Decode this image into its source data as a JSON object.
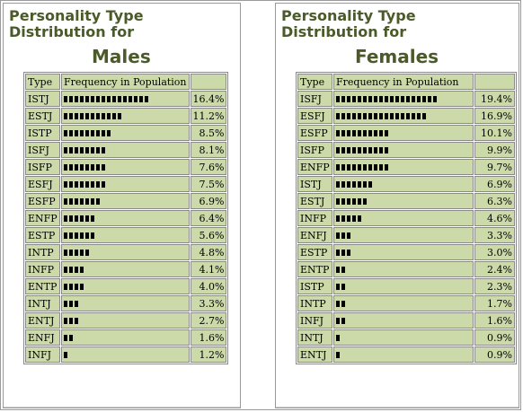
{
  "colors": {
    "heading": "#4a5a28",
    "cell": "#ccd9a8",
    "border": "#8a8a8a",
    "bar": "#000000"
  },
  "males": {
    "title": "Personality Type Distribution for",
    "subtitle": "Males",
    "columns": {
      "type": "Type",
      "frequency": "Frequency in Population",
      "percent": ""
    },
    "rows": [
      {
        "type": "ISTJ",
        "percent": "16.4%",
        "value": 16.4
      },
      {
        "type": "ESTJ",
        "percent": "11.2%",
        "value": 11.2
      },
      {
        "type": "ISTP",
        "percent": "8.5%",
        "value": 8.5
      },
      {
        "type": "ISFJ",
        "percent": "8.1%",
        "value": 8.1
      },
      {
        "type": "ISFP",
        "percent": "7.6%",
        "value": 7.6
      },
      {
        "type": "ESFJ",
        "percent": "7.5%",
        "value": 7.5
      },
      {
        "type": "ESFP",
        "percent": "6.9%",
        "value": 6.9
      },
      {
        "type": "ENFP",
        "percent": "6.4%",
        "value": 6.4
      },
      {
        "type": "ESTP",
        "percent": "5.6%",
        "value": 5.6
      },
      {
        "type": "INTP",
        "percent": "4.8%",
        "value": 4.8
      },
      {
        "type": "INFP",
        "percent": "4.1%",
        "value": 4.1
      },
      {
        "type": "ENTP",
        "percent": "4.0%",
        "value": 4.0
      },
      {
        "type": "INTJ",
        "percent": "3.3%",
        "value": 3.3
      },
      {
        "type": "ENTJ",
        "percent": "2.7%",
        "value": 2.7
      },
      {
        "type": "ENFJ",
        "percent": "1.6%",
        "value": 1.6
      },
      {
        "type": "INFJ",
        "percent": "1.2%",
        "value": 1.2
      }
    ]
  },
  "females": {
    "title": "Personality Type Distribution for",
    "subtitle": "Females",
    "columns": {
      "type": "Type",
      "frequency": "Frequency in Population",
      "percent": ""
    },
    "rows": [
      {
        "type": "ISFJ",
        "percent": "19.4%",
        "value": 19.4
      },
      {
        "type": "ESFJ",
        "percent": "16.9%",
        "value": 16.9
      },
      {
        "type": "ESFP",
        "percent": "10.1%",
        "value": 10.1
      },
      {
        "type": "ISFP",
        "percent": "9.9%",
        "value": 9.9
      },
      {
        "type": "ENFP",
        "percent": "9.7%",
        "value": 9.7
      },
      {
        "type": "ISTJ",
        "percent": "6.9%",
        "value": 6.9
      },
      {
        "type": "ESTJ",
        "percent": "6.3%",
        "value": 6.3
      },
      {
        "type": "INFP",
        "percent": "4.6%",
        "value": 4.6
      },
      {
        "type": "ENFJ",
        "percent": "3.3%",
        "value": 3.3
      },
      {
        "type": "ESTP",
        "percent": "3.0%",
        "value": 3.0
      },
      {
        "type": "ENTP",
        "percent": "2.4%",
        "value": 2.4
      },
      {
        "type": "ISTP",
        "percent": "2.3%",
        "value": 2.3
      },
      {
        "type": "INTP",
        "percent": "1.7%",
        "value": 1.7
      },
      {
        "type": "INFJ",
        "percent": "1.6%",
        "value": 1.6
      },
      {
        "type": "INTJ",
        "percent": "0.9%",
        "value": 0.9
      },
      {
        "type": "ENTJ",
        "percent": "0.9%",
        "value": 0.9
      }
    ]
  }
}
